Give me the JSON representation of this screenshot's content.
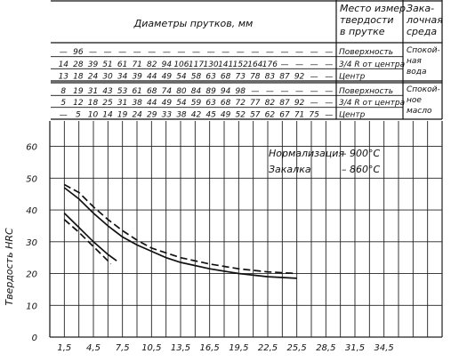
{
  "header": {
    "diameters_title": "Диаметры прутков, мм",
    "place_title": [
      "Место измер.",
      "твердости",
      "в прутке"
    ],
    "medium_title": [
      "Зака-",
      "лочная",
      "среда"
    ],
    "group_water": {
      "medium": [
        "Спокой-",
        "ная",
        "вода"
      ],
      "rows": [
        {
          "values": [
            "—",
            "96",
            "—",
            "—",
            "—",
            "—",
            "—",
            "—",
            "—",
            "—",
            "—",
            "—",
            "—",
            "—",
            "—",
            "—",
            "—",
            "—",
            "—"
          ],
          "place": "Поверхность"
        },
        {
          "values": [
            "14",
            "28",
            "39",
            "51",
            "61",
            "71",
            "82",
            "94",
            "106",
            "117",
            "130",
            "141",
            "152",
            "164",
            "176",
            "—",
            "—",
            "—",
            "—"
          ],
          "place": "3/4 R от центра"
        },
        {
          "values": [
            "13",
            "18",
            "24",
            "30",
            "34",
            "39",
            "44",
            "49",
            "54",
            "58",
            "63",
            "68",
            "73",
            "78",
            "83",
            "87",
            "92",
            "—",
            "—"
          ],
          "place": "Центр"
        }
      ]
    },
    "group_oil": {
      "medium": [
        "Спокой-",
        "ное",
        "масло"
      ],
      "rows": [
        {
          "values": [
            "8",
            "19",
            "31",
            "43",
            "53",
            "61",
            "68",
            "74",
            "80",
            "84",
            "89",
            "94",
            "98",
            "—",
            "—",
            "—",
            "—",
            "—",
            "—"
          ],
          "place": "Поверхность"
        },
        {
          "values": [
            "5",
            "12",
            "18",
            "25",
            "31",
            "38",
            "44",
            "49",
            "54",
            "59",
            "63",
            "68",
            "72",
            "77",
            "82",
            "87",
            "92",
            "—",
            "—"
          ],
          "place": "3/4 R от центра"
        },
        {
          "values": [
            "—",
            "5",
            "10",
            "14",
            "19",
            "24",
            "29",
            "33",
            "38",
            "42",
            "45",
            "49",
            "52",
            "57",
            "62",
            "67",
            "71",
            "75",
            "—"
          ],
          "place": "Центр"
        }
      ]
    }
  },
  "annotations": [
    {
      "label": "Нормализация",
      "value": "– 900°C"
    },
    {
      "label": "Закалка",
      "value": "– 860°C"
    }
  ],
  "chart_data": {
    "type": "line",
    "ylabel": "Твердость HRC",
    "xlabel": "",
    "y_ticks": [
      "0",
      "10",
      "20",
      "30",
      "40",
      "50",
      "60"
    ],
    "x_ticks": [
      "1,5",
      "4,5",
      "7,5",
      "10,5",
      "13,5",
      "16,5",
      "19,5",
      "22,5",
      "25,5",
      "28,5",
      "31,5",
      "34,5"
    ],
    "ylim": [
      0,
      68
    ],
    "xlim": [
      0,
      40.5
    ],
    "grid": true,
    "series": [
      {
        "style": "dashed",
        "x": [
          1.5,
          3,
          4.5,
          6,
          7.5,
          9,
          10.5,
          12,
          13.5,
          16.5,
          19.5,
          22.5,
          25.5
        ],
        "y": [
          48,
          45.5,
          41,
          37,
          33.5,
          30.5,
          28,
          26.5,
          25,
          23,
          21.5,
          20.5,
          20
        ]
      },
      {
        "style": "solid",
        "x": [
          1.5,
          3,
          4.5,
          6,
          7.5,
          9,
          10.5,
          12,
          13.5,
          16.5,
          19.5,
          22.5,
          25.5
        ],
        "y": [
          47,
          43.5,
          39,
          35,
          31.5,
          29,
          27,
          25,
          23.5,
          21.5,
          20,
          19,
          18.5
        ]
      },
      {
        "style": "solid",
        "x": [
          1.5,
          3,
          4.5,
          6,
          6.9
        ],
        "y": [
          39,
          34.5,
          30,
          26,
          24
        ]
      },
      {
        "style": "dashed",
        "x": [
          1.5,
          3,
          4.5,
          6,
          6.3
        ],
        "y": [
          37,
          33,
          28.5,
          24,
          23
        ]
      }
    ]
  }
}
